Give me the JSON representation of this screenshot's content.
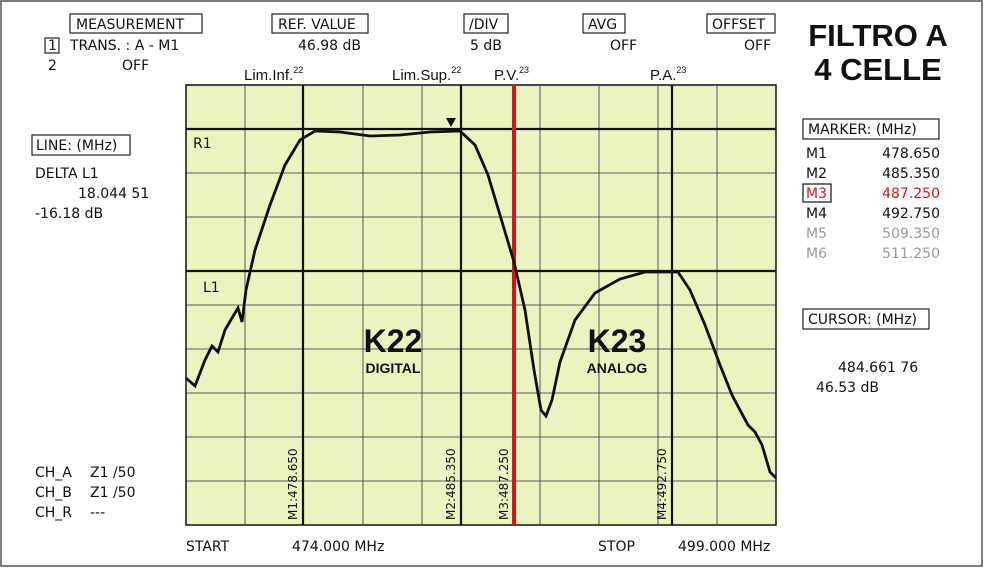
{
  "header": {
    "measurement": {
      "label": "MEASUREMENT",
      "line1_index": "1",
      "line1": "TRANS. : A - M1",
      "line2_index": "2",
      "line2": "OFF"
    },
    "ref_value": {
      "label": "REF. VALUE",
      "value": "46.98 dB"
    },
    "div": {
      "label": "/DIV",
      "value": "5 dB"
    },
    "avg": {
      "label": "AVG",
      "value": "OFF"
    },
    "offset": {
      "label": "OFFSET",
      "value": "OFF"
    }
  },
  "title": [
    "FILTRO A",
    "4 CELLE"
  ],
  "top_labels": [
    {
      "text": "Lim.Inf.",
      "sup": "22"
    },
    {
      "text": "Lim.Sup.",
      "sup": "22"
    },
    {
      "text": "P.V.",
      "sup": "23"
    },
    {
      "text": "P.A.",
      "sup": "23"
    }
  ],
  "line": {
    "label": "LINE: (MHz)",
    "name": "DELTA L1",
    "value": "18.044 51",
    "level": "-16.18 dB"
  },
  "marker": {
    "label": "MARKER: (MHz)",
    "rows": [
      [
        "M1",
        "478.650"
      ],
      [
        "M2",
        "485.350"
      ],
      [
        "M3",
        "487.250"
      ],
      [
        "M4",
        "492.750"
      ],
      [
        "M5",
        "509.350"
      ],
      [
        "M6",
        "511.250"
      ]
    ]
  },
  "cursor": {
    "label": "CURSOR: (MHz)",
    "freq": "484.661 76",
    "level": "46.53 dB"
  },
  "channels": [
    [
      "CH_A",
      "Z1 /50"
    ],
    [
      "CH_B",
      "Z1 /50"
    ],
    [
      "CH_R",
      "---"
    ]
  ],
  "plot": {
    "ref_line": "R1",
    "limit_line": "L1",
    "zones": [
      {
        "name": "K22",
        "type": "DIGITAL"
      },
      {
        "name": "K23",
        "type": "ANALOG"
      }
    ],
    "marker_labels": [
      "M1:478.650",
      "M2:485.350",
      "M3:487.250",
      "M4:492.750"
    ]
  },
  "footer": {
    "start_label": "START",
    "start": "474.000 MHz",
    "stop_label": "STOP",
    "stop": "499.000 MHz"
  }
}
